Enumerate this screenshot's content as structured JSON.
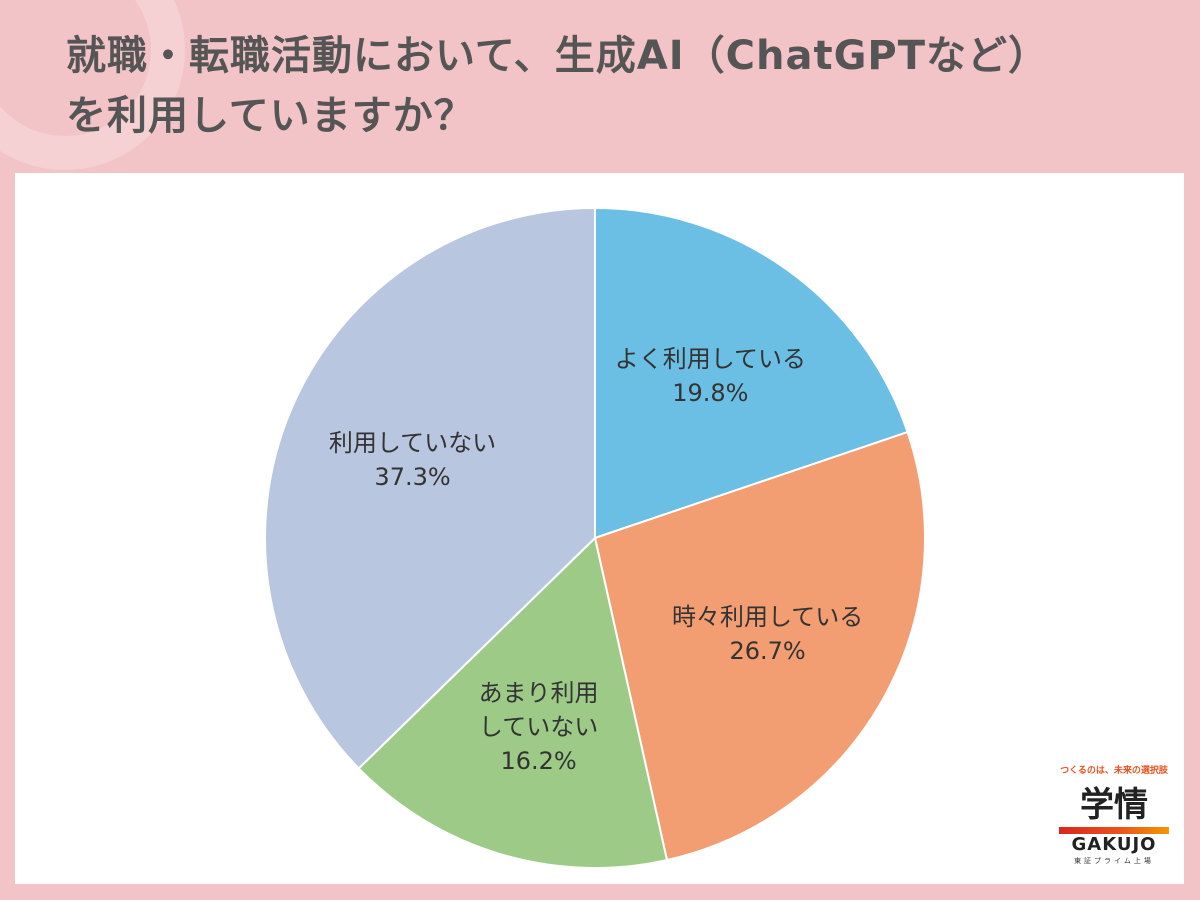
{
  "title_line1": "就職・転職活動において、生成AI（ChatGPTなど）",
  "title_line2": "を利用していますか？",
  "chart_data": {
    "type": "pie",
    "start_angle_deg": 0,
    "direction": "clockwise",
    "slices": [
      {
        "label_lines": [
          "よく利用している"
        ],
        "value": 19.8,
        "value_label": "19.8%",
        "color": "#6cbfe4"
      },
      {
        "label_lines": [
          "時々利用している"
        ],
        "value": 26.7,
        "value_label": "26.7%",
        "color": "#f29e72"
      },
      {
        "label_lines": [
          "あまり利用",
          "していない"
        ],
        "value": 16.2,
        "value_label": "16.2%",
        "color": "#9dcb87"
      },
      {
        "label_lines": [
          "利用していない"
        ],
        "value": 37.3,
        "value_label": "37.3%",
        "color": "#b9c6e0"
      }
    ]
  },
  "logo": {
    "tagline": "つくるのは、未来の選択肢",
    "mark": "学情",
    "wordmark": "GAKUJO",
    "sub": "東証プライム上場"
  }
}
